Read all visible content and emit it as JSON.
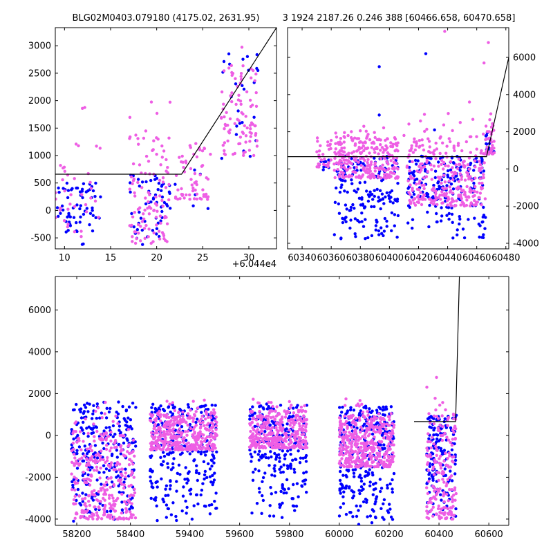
{
  "figure": {
    "title_left": "BLG02M0403.079180 (4175.02, 2631.95)",
    "title_right": "3 1924 2187.26 0.246 388 [60466.658, 60470.658]",
    "colors": {
      "series_a": "#0000ff",
      "series_b": "#ee5ee4",
      "model": "#000000"
    }
  },
  "chart_data": [
    {
      "id": "zoom",
      "type": "scatter",
      "xlim": [
        9,
        33
      ],
      "ylim": [
        -700,
        3330
      ],
      "xticks": [
        10,
        15,
        20,
        25,
        30
      ],
      "yticks": [
        -500,
        0,
        500,
        1000,
        1500,
        2000,
        2500,
        3000
      ],
      "x_offset_label": "+6.044e4",
      "x_offset": 60440,
      "model": {
        "x": [
          9,
          22.7,
          33
        ],
        "y": [
          660,
          660,
          3330
        ]
      },
      "clusters": [
        {
          "x": [
            9,
            11
          ],
          "blue_y": [
            -600,
            500
          ],
          "pink_y": [
            -300,
            1250
          ]
        },
        {
          "x": [
            11,
            14
          ],
          "blue_y": [
            -650,
            500
          ],
          "pink_y": [
            -500,
            2100
          ]
        },
        {
          "x": [
            17,
            21.5
          ],
          "blue_y": [
            -650,
            650
          ],
          "pink_y": [
            -600,
            2100
          ]
        },
        {
          "x": [
            22,
            26
          ],
          "blue_y": [
            0,
            800
          ],
          "pink_y": [
            200,
            1600
          ]
        },
        {
          "x": [
            27,
            31
          ],
          "blue_y": [
            700,
            2900
          ],
          "pink_y": [
            1000,
            3300
          ]
        }
      ]
    },
    {
      "id": "recent",
      "type": "scatter",
      "xlim": [
        60330,
        60482
      ],
      "ylim": [
        -4300,
        7600
      ],
      "xticks": [
        60340,
        60360,
        60380,
        60400,
        60420,
        60440,
        60460,
        60480
      ],
      "yticks": [
        -4000,
        -2000,
        0,
        2000,
        4000,
        6000
      ],
      "model": {
        "x": [
          60330,
          60466.7,
          60482
        ],
        "y": [
          660,
          660,
          6000
        ]
      },
      "clusters": [
        {
          "x": [
            60350,
            60360
          ],
          "blue_y": [
            -100,
            500
          ],
          "pink_y": [
            100,
            2100
          ]
        },
        {
          "x": [
            60362,
            60406
          ],
          "blue_y": [
            -3800,
            700
          ],
          "pink_y": [
            -500,
            2500
          ]
        },
        {
          "x": [
            60412,
            60466
          ],
          "blue_y": [
            -3800,
            700
          ],
          "pink_y": [
            -2000,
            3000
          ]
        },
        {
          "x": [
            60466,
            60472
          ],
          "blue_y": [
            600,
            2000
          ],
          "pink_y": [
            800,
            3000
          ]
        }
      ],
      "outliers": {
        "blue": [
          [
            60393,
            5500
          ],
          [
            60393,
            2900
          ],
          [
            60425,
            6200
          ],
          [
            60431,
            2100
          ]
        ],
        "pink": [
          [
            60438,
            7400
          ],
          [
            60468,
            6800
          ],
          [
            60465,
            5700
          ],
          [
            60455,
            3600
          ],
          [
            60410,
            1800
          ]
        ]
      }
    },
    {
      "id": "full",
      "type": "scatter",
      "ylim": [
        -4300,
        7600
      ],
      "yticks": [
        -4000,
        -2000,
        0,
        2000,
        4000,
        6000
      ],
      "segments": [
        {
          "xlim": [
            58120,
            58455
          ],
          "xticks": [
            58200,
            58400
          ]
        },
        {
          "xlim": [
            59232,
            60680
          ],
          "xticks": [
            59400,
            59600,
            59800,
            60000,
            60200,
            60400,
            60600
          ]
        }
      ],
      "model": {
        "x": [
          60300,
          60466.7,
          60482
        ],
        "y": [
          660,
          660,
          7600
        ]
      },
      "clusters": [
        {
          "x": [
            58180,
            58420
          ],
          "blue_y": [
            -4200,
            1600
          ],
          "pink_y": [
            -4000,
            1600
          ]
        },
        {
          "x": [
            59240,
            59510
          ],
          "blue_y": [
            -4200,
            1500
          ],
          "pink_y": [
            -700,
            1800
          ]
        },
        {
          "x": [
            59640,
            59870
          ],
          "blue_y": [
            -4200,
            1500
          ],
          "pink_y": [
            -600,
            1800
          ]
        },
        {
          "x": [
            60000,
            60220
          ],
          "blue_y": [
            -4300,
            1400
          ],
          "pink_y": [
            -1500,
            1800
          ]
        },
        {
          "x": [
            60350,
            60470
          ],
          "blue_y": [
            -4000,
            1000
          ],
          "pink_y": [
            -4000,
            3000
          ]
        }
      ]
    }
  ]
}
